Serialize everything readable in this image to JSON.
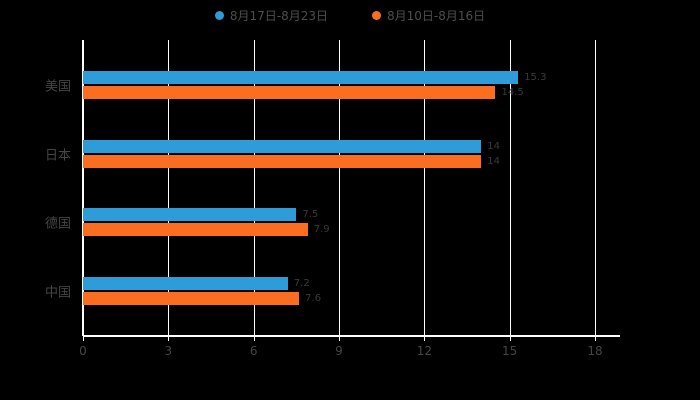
{
  "colors": {
    "background": "#000000",
    "grid": "#ffffff",
    "axis_text": "#454545",
    "legend_text": "#4d4d4d",
    "value_label": "#3a3a3a",
    "series1": "#2D9CD8",
    "series2": "#FB6E20"
  },
  "chart_data": {
    "type": "bar",
    "orientation": "horizontal",
    "title": "",
    "xlabel": "",
    "ylabel": "",
    "categories": [
      "美国",
      "日本",
      "德国",
      "中国"
    ],
    "series": [
      {
        "name": "8月17日-8月23日",
        "color": "#2D9CD8",
        "values": [
          15.3,
          14.0,
          7.5,
          7.2
        ]
      },
      {
        "name": "8月10日-8月16日",
        "color": "#FB6E20",
        "values": [
          14.5,
          14.0,
          7.9,
          7.6
        ]
      }
    ],
    "xlim": [
      0,
      18
    ],
    "xticks": [
      0,
      3,
      6,
      9,
      12,
      15,
      18
    ],
    "grid": true,
    "legend_position": "top"
  }
}
